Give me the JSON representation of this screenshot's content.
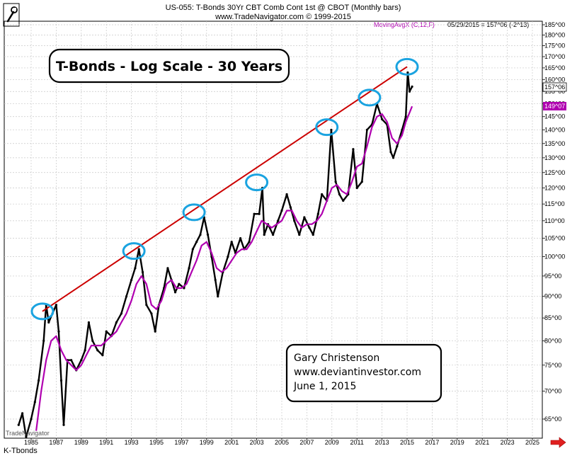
{
  "header": {
    "line1": "US-055:  T-Bonds 30Yr CBT Comb Cont 1st @ CBOT  (Monthly bars)",
    "line2": "www.TradeNavigator.com © 1999-2015",
    "ma_label": "MovingAvgX (C,12,F)",
    "date_info": "05/29/2015 = 157^06 (-2^13)"
  },
  "price_tag": "157^06",
  "ma_tag": "149^07",
  "footer_symbol": "K-Tbonds",
  "watermark": "TradeNavigator",
  "colors": {
    "price": "#000000",
    "ma": "#b000b0",
    "trendline": "#cc0000",
    "circles": "#1aa3e0",
    "grid": "#c8c8c8",
    "arrow": "#e02020"
  },
  "icons": [
    "wrench-icon",
    "right-arrow-icon"
  ],
  "chart_data": {
    "type": "line",
    "title": "T-Bonds - Log Scale - 30 Years",
    "annotation": [
      "Gary Christenson",
      "www.deviantinvestor.com",
      "June 1, 2015"
    ],
    "y_scale": "log",
    "ylim": [
      62,
      188
    ],
    "xlim": [
      1984.0,
      2026.0
    ],
    "y_ticks": [
      65,
      70,
      75,
      80,
      85,
      90,
      95,
      100,
      105,
      110,
      115,
      120,
      125,
      130,
      135,
      140,
      145,
      150,
      155,
      160,
      165,
      170,
      175,
      180,
      185
    ],
    "y_tick_labels": [
      "65^00",
      "70^00",
      "75^00",
      "80^00",
      "85^00",
      "90^00",
      "95^00",
      "100^00",
      "105^00",
      "110^00",
      "115^00",
      "120^00",
      "125^00",
      "130^00",
      "135^00",
      "140^00",
      "145^00",
      "150^00",
      "155^00",
      "160^00",
      "165^00",
      "170^00",
      "175^00",
      "180^00",
      "185^00"
    ],
    "x_ticks": [
      1985,
      1987,
      1989,
      1991,
      1993,
      1995,
      1997,
      1999,
      2001,
      2003,
      2005,
      2007,
      2009,
      2011,
      2013,
      2015,
      2017,
      2019,
      2021,
      2023,
      2025
    ],
    "grid": true,
    "series": [
      {
        "name": "T-Bonds 30Yr (Monthly bars)",
        "points": [
          [
            1984.0,
            64
          ],
          [
            1984.3,
            66
          ],
          [
            1984.6,
            62
          ],
          [
            1985.0,
            65
          ],
          [
            1985.3,
            68
          ],
          [
            1985.6,
            72
          ],
          [
            1986.0,
            80
          ],
          [
            1986.2,
            88
          ],
          [
            1986.4,
            84
          ],
          [
            1986.7,
            86
          ],
          [
            1987.0,
            88
          ],
          [
            1987.2,
            82
          ],
          [
            1987.4,
            72
          ],
          [
            1987.6,
            64
          ],
          [
            1987.9,
            76
          ],
          [
            1988.2,
            76
          ],
          [
            1988.6,
            74
          ],
          [
            1989.0,
            76
          ],
          [
            1989.3,
            78
          ],
          [
            1989.6,
            84
          ],
          [
            1989.9,
            80
          ],
          [
            1990.3,
            78
          ],
          [
            1990.7,
            77
          ],
          [
            1991.0,
            82
          ],
          [
            1991.4,
            81
          ],
          [
            1991.8,
            84
          ],
          [
            1992.2,
            86
          ],
          [
            1992.6,
            90
          ],
          [
            1993.0,
            94
          ],
          [
            1993.3,
            97
          ],
          [
            1993.6,
            102
          ],
          [
            1993.9,
            96
          ],
          [
            1994.2,
            88
          ],
          [
            1994.6,
            86
          ],
          [
            1994.9,
            82
          ],
          [
            1995.2,
            88
          ],
          [
            1995.6,
            92
          ],
          [
            1995.9,
            97
          ],
          [
            1996.2,
            94
          ],
          [
            1996.5,
            91
          ],
          [
            1996.8,
            93
          ],
          [
            1997.2,
            92
          ],
          [
            1997.6,
            97
          ],
          [
            1997.9,
            102
          ],
          [
            1998.2,
            104
          ],
          [
            1998.5,
            106
          ],
          [
            1998.8,
            111
          ],
          [
            1999.1,
            106
          ],
          [
            1999.4,
            100
          ],
          [
            1999.7,
            94
          ],
          [
            1999.9,
            90
          ],
          [
            2000.3,
            96
          ],
          [
            2000.7,
            100
          ],
          [
            2001.0,
            104
          ],
          [
            2001.3,
            101
          ],
          [
            2001.7,
            105
          ],
          [
            2002.0,
            102
          ],
          [
            2002.4,
            104
          ],
          [
            2002.8,
            112
          ],
          [
            2003.2,
            112
          ],
          [
            2003.45,
            120
          ],
          [
            2003.6,
            106
          ],
          [
            2003.9,
            109
          ],
          [
            2004.3,
            106
          ],
          [
            2004.7,
            110
          ],
          [
            2005.0,
            113
          ],
          [
            2005.4,
            118
          ],
          [
            2005.7,
            114
          ],
          [
            2006.0,
            110
          ],
          [
            2006.4,
            106
          ],
          [
            2006.8,
            111
          ],
          [
            2007.2,
            108
          ],
          [
            2007.5,
            106
          ],
          [
            2007.9,
            112
          ],
          [
            2008.2,
            118
          ],
          [
            2008.6,
            116
          ],
          [
            2008.95,
            140
          ],
          [
            2009.3,
            122
          ],
          [
            2009.6,
            118
          ],
          [
            2009.9,
            116
          ],
          [
            2010.3,
            118
          ],
          [
            2010.7,
            133
          ],
          [
            2011.0,
            120
          ],
          [
            2011.4,
            122
          ],
          [
            2011.8,
            140
          ],
          [
            2012.2,
            142
          ],
          [
            2012.6,
            150
          ],
          [
            2013.0,
            144
          ],
          [
            2013.4,
            142
          ],
          [
            2013.7,
            132
          ],
          [
            2013.9,
            130
          ],
          [
            2014.2,
            134
          ],
          [
            2014.6,
            140
          ],
          [
            2014.9,
            145
          ],
          [
            2015.05,
            163
          ],
          [
            2015.2,
            155
          ],
          [
            2015.4,
            157
          ]
        ]
      },
      {
        "name": "MovingAvgX (C,12,F)",
        "points": [
          [
            1985.4,
            63
          ],
          [
            1985.8,
            70
          ],
          [
            1986.2,
            76
          ],
          [
            1986.6,
            80
          ],
          [
            1987.0,
            81
          ],
          [
            1987.4,
            78
          ],
          [
            1987.8,
            76
          ],
          [
            1988.2,
            75
          ],
          [
            1988.6,
            74
          ],
          [
            1989.0,
            75
          ],
          [
            1989.4,
            77
          ],
          [
            1989.8,
            79
          ],
          [
            1990.2,
            79
          ],
          [
            1990.6,
            79
          ],
          [
            1991.0,
            80
          ],
          [
            1991.4,
            81
          ],
          [
            1991.8,
            82
          ],
          [
            1992.2,
            84
          ],
          [
            1992.6,
            86
          ],
          [
            1993.0,
            89
          ],
          [
            1993.4,
            93
          ],
          [
            1993.8,
            95
          ],
          [
            1994.2,
            93
          ],
          [
            1994.6,
            88
          ],
          [
            1995.0,
            87
          ],
          [
            1995.4,
            89
          ],
          [
            1995.8,
            93
          ],
          [
            1996.2,
            94
          ],
          [
            1996.6,
            92
          ],
          [
            1997.0,
            92
          ],
          [
            1997.4,
            93
          ],
          [
            1997.8,
            96
          ],
          [
            1998.2,
            99
          ],
          [
            1998.6,
            103
          ],
          [
            1999.0,
            104
          ],
          [
            1999.4,
            101
          ],
          [
            1999.8,
            97
          ],
          [
            2000.2,
            96
          ],
          [
            2000.6,
            97
          ],
          [
            2001.0,
            99
          ],
          [
            2001.4,
            101
          ],
          [
            2001.8,
            102
          ],
          [
            2002.2,
            102
          ],
          [
            2002.6,
            104
          ],
          [
            2003.0,
            107
          ],
          [
            2003.4,
            110
          ],
          [
            2003.8,
            109
          ],
          [
            2004.2,
            108
          ],
          [
            2004.6,
            109
          ],
          [
            2005.0,
            110
          ],
          [
            2005.4,
            113
          ],
          [
            2005.8,
            113
          ],
          [
            2006.2,
            110
          ],
          [
            2006.6,
            108
          ],
          [
            2007.0,
            109
          ],
          [
            2007.4,
            109
          ],
          [
            2007.8,
            110
          ],
          [
            2008.2,
            112
          ],
          [
            2008.6,
            116
          ],
          [
            2009.0,
            120
          ],
          [
            2009.4,
            121
          ],
          [
            2009.8,
            119
          ],
          [
            2010.2,
            118
          ],
          [
            2010.6,
            122
          ],
          [
            2011.0,
            127
          ],
          [
            2011.4,
            128
          ],
          [
            2011.8,
            134
          ],
          [
            2012.2,
            141
          ],
          [
            2012.6,
            145
          ],
          [
            2013.0,
            146
          ],
          [
            2013.4,
            143
          ],
          [
            2013.8,
            137
          ],
          [
            2014.2,
            135
          ],
          [
            2014.6,
            138
          ],
          [
            2014.9,
            143
          ],
          [
            2015.4,
            149
          ]
        ]
      }
    ],
    "trendline": [
      [
        1985.9,
        86.5
      ],
      [
        2015.0,
        165.5
      ]
    ],
    "highlight_circles": [
      [
        1985.9,
        86.5
      ],
      [
        1993.2,
        101.5
      ],
      [
        1998.0,
        112.5
      ],
      [
        2003.0,
        121.8
      ],
      [
        2008.6,
        141
      ],
      [
        2012.0,
        152.5
      ],
      [
        2015.0,
        165.5
      ]
    ]
  }
}
